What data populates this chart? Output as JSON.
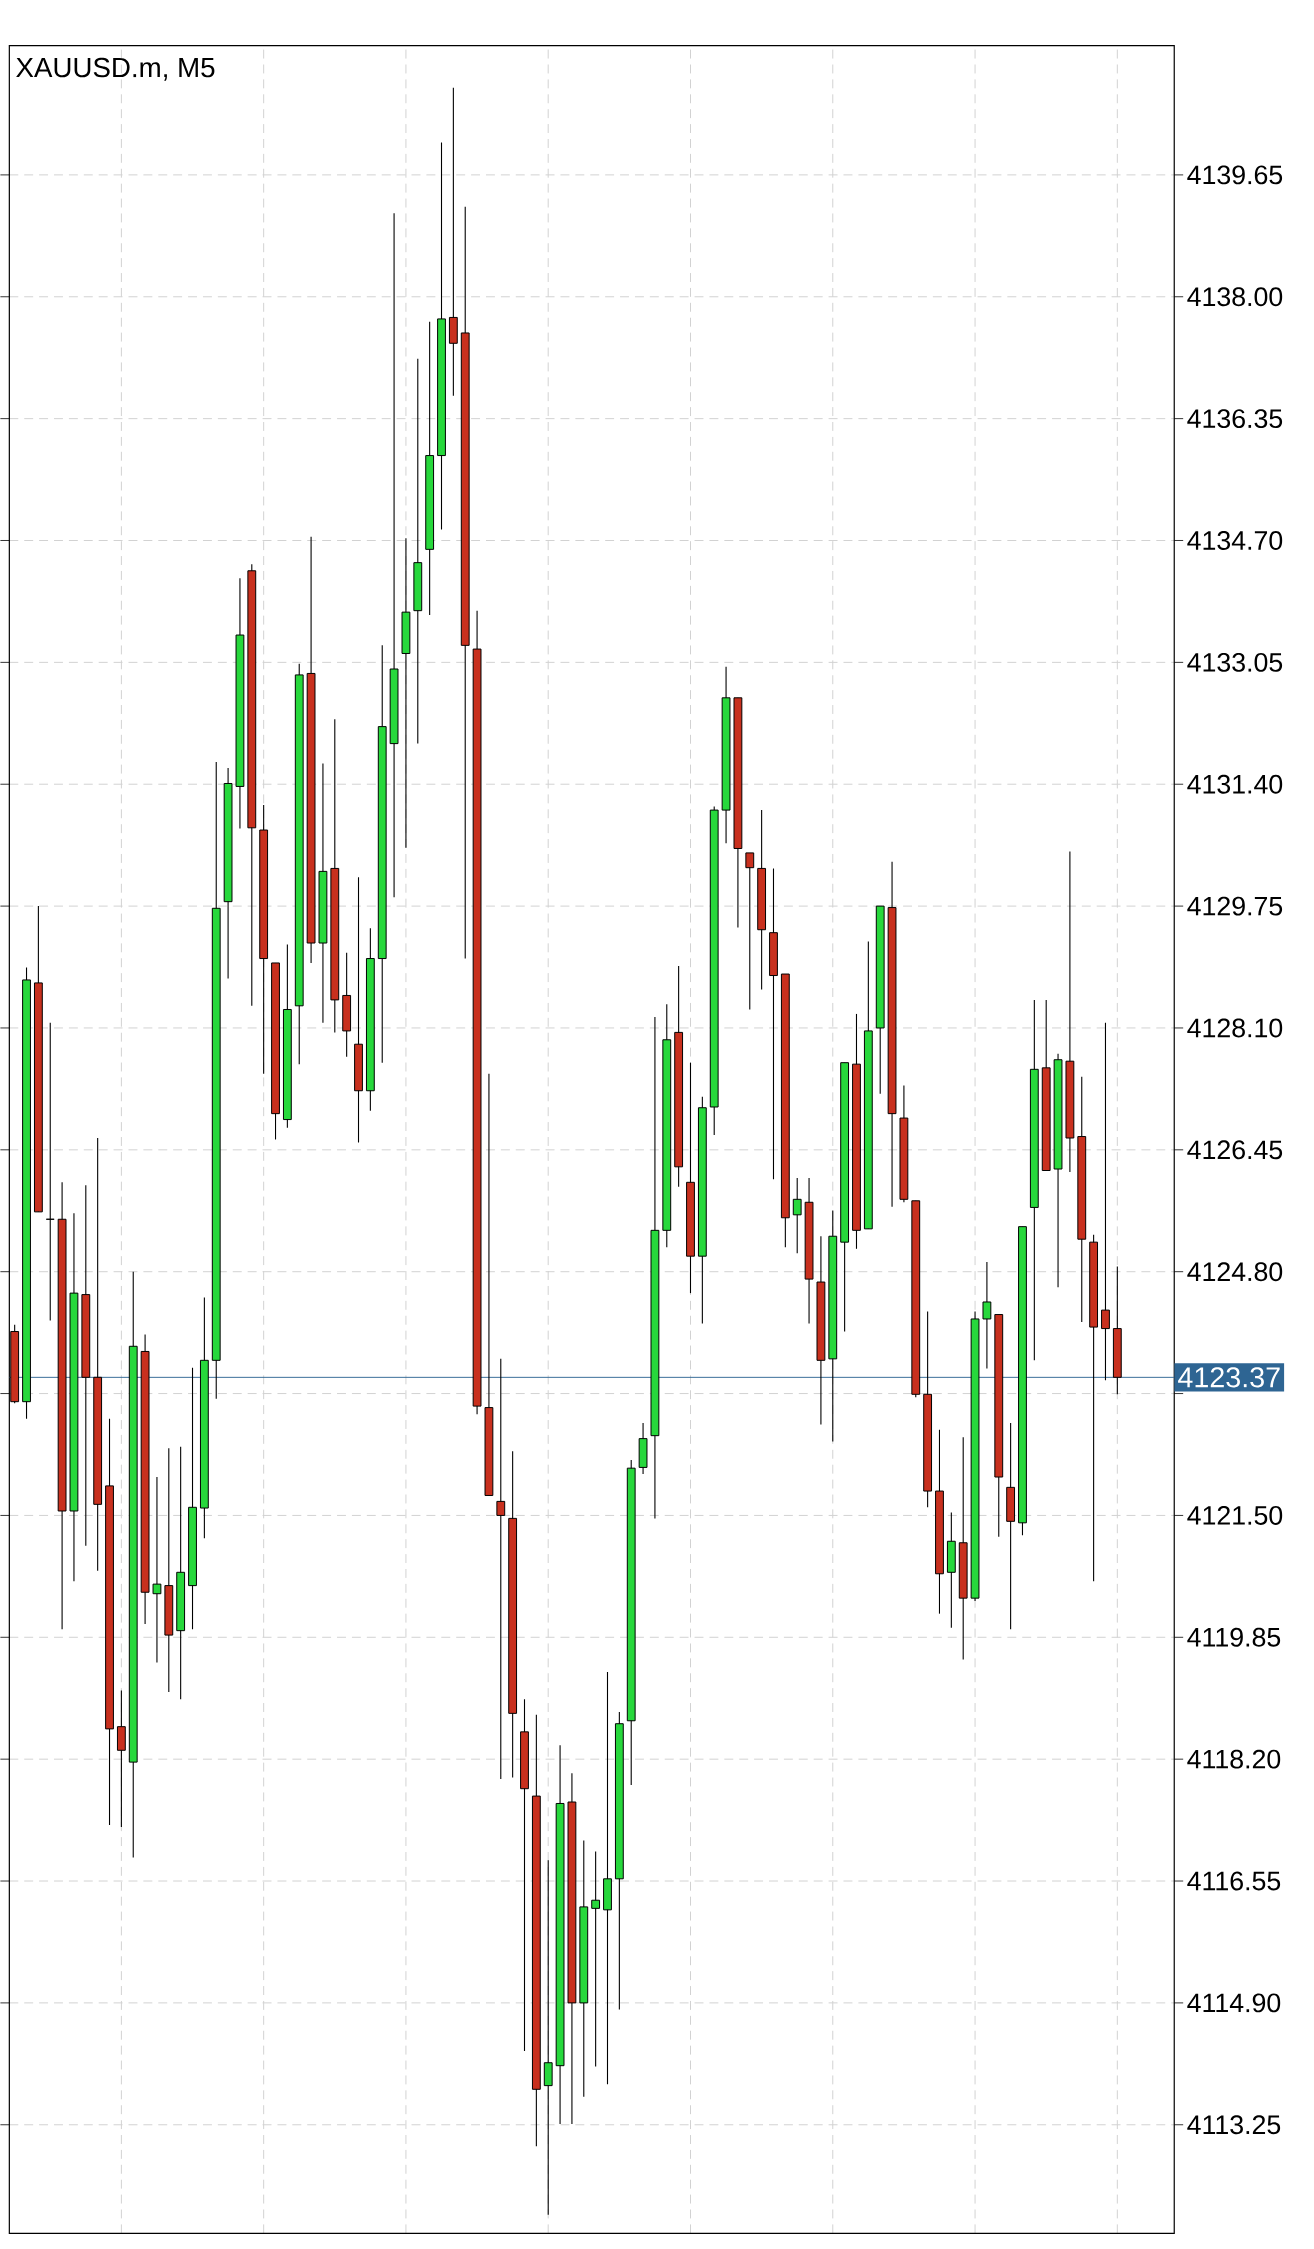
{
  "chart_data": {
    "type": "candlestick",
    "title": "XAUUSD.m, M5",
    "categories": [
      null,
      null,
      null,
      null,
      null,
      null,
      null,
      null,
      null,
      null,
      null,
      null,
      null,
      null,
      null,
      null,
      null,
      null,
      null,
      null,
      null,
      null,
      null,
      null,
      null,
      null,
      null,
      null,
      null,
      null,
      null,
      null,
      null,
      null,
      null,
      null,
      null,
      null,
      null,
      null,
      null,
      null,
      null,
      null,
      null,
      null,
      null,
      null,
      null,
      null,
      null,
      null,
      null,
      null,
      null,
      null,
      null,
      null,
      null,
      null,
      null,
      null,
      null,
      null,
      null,
      null,
      null,
      null,
      null,
      null,
      null,
      null,
      null,
      null,
      null,
      null,
      null,
      null,
      null,
      null,
      null,
      null,
      null,
      null,
      null,
      null,
      null,
      null,
      null,
      null,
      null,
      null,
      null,
      null
    ],
    "ohlc": [
      [
        4123.99,
        4124.08,
        4123.02,
        4123.04
      ],
      [
        4123.04,
        4128.92,
        4122.81,
        4128.75
      ],
      [
        4128.71,
        4129.75,
        4125.61,
        4125.61
      ],
      [
        4125.51,
        4128.17,
        4124.14,
        4125.51
      ],
      [
        4125.51,
        4126.01,
        4119.96,
        4121.56
      ],
      [
        4121.56,
        4125.59,
        4120.61,
        4124.51
      ],
      [
        4124.49,
        4125.97,
        4121.09,
        4123.37
      ],
      [
        4123.37,
        4126.61,
        4120.75,
        4121.65
      ],
      [
        4121.9,
        4122.81,
        4117.31,
        4118.61
      ],
      [
        4118.64,
        4119.13,
        4117.28,
        4118.32
      ],
      [
        4118.16,
        4124.8,
        4116.87,
        4123.79
      ],
      [
        4123.72,
        4123.95,
        4120.03,
        4120.46
      ],
      [
        4120.44,
        4122.02,
        4119.51,
        4120.57
      ],
      [
        4120.55,
        4122.41,
        4119.11,
        4119.88
      ],
      [
        4119.94,
        4122.43,
        4119.01,
        4120.73
      ],
      [
        4120.55,
        4123.5,
        4119.96,
        4121.61
      ],
      [
        4121.6,
        4124.45,
        4121.19,
        4123.6
      ],
      [
        4123.6,
        4131.7,
        4123.08,
        4129.72
      ],
      [
        4129.81,
        4131.62,
        4128.77,
        4131.41
      ],
      [
        4131.37,
        4134.19,
        4130.8,
        4133.42
      ],
      [
        4134.29,
        4134.38,
        4128.4,
        4130.81
      ],
      [
        4130.78,
        4131.12,
        4127.48,
        4129.04
      ],
      [
        4128.98,
        4128.98,
        4126.59,
        4126.94
      ],
      [
        4126.86,
        4129.23,
        4126.75,
        4128.35
      ],
      [
        4128.4,
        4133.03,
        4127.61,
        4132.88
      ],
      [
        4132.9,
        4134.75,
        4128.98,
        4129.25
      ],
      [
        4129.25,
        4131.68,
        4128.17,
        4130.22
      ],
      [
        4130.26,
        4132.28,
        4128.04,
        4128.48
      ],
      [
        4128.54,
        4129.12,
        4127.71,
        4128.06
      ],
      [
        4127.88,
        4130.14,
        4126.55,
        4127.25
      ],
      [
        4127.25,
        4129.45,
        4126.98,
        4129.04
      ],
      [
        4129.04,
        4133.28,
        4127.63,
        4132.18
      ],
      [
        4131.95,
        4139.13,
        4129.87,
        4132.96
      ],
      [
        4133.17,
        4134.73,
        4130.54,
        4133.73
      ],
      [
        4133.75,
        4137.16,
        4131.95,
        4134.4
      ],
      [
        4134.58,
        4137.66,
        4133.69,
        4135.85
      ],
      [
        4135.85,
        4140.09,
        4134.85,
        4137.7
      ],
      [
        4137.72,
        4140.83,
        4136.66,
        4137.37
      ],
      [
        4137.51,
        4139.22,
        4129.04,
        4133.28
      ],
      [
        4133.23,
        4133.75,
        4122.87,
        4122.98
      ],
      [
        4122.96,
        4127.48,
        4121.77,
        4121.77
      ],
      [
        4121.69,
        4123.62,
        4117.93,
        4121.5
      ],
      [
        4121.46,
        4122.37,
        4117.95,
        4118.82
      ],
      [
        4118.57,
        4119.01,
        4114.25,
        4117.8
      ],
      [
        4117.7,
        4118.8,
        4112.96,
        4113.73
      ],
      [
        4113.78,
        4116.83,
        4112.03,
        4114.09
      ],
      [
        4114.05,
        4118.39,
        4113.26,
        4117.6
      ],
      [
        4117.62,
        4118.01,
        4113.26,
        4114.9
      ],
      [
        4114.9,
        4117.1,
        4113.63,
        4116.2
      ],
      [
        4116.18,
        4116.95,
        4114.04,
        4116.29
      ],
      [
        4116.16,
        4119.38,
        4113.8,
        4116.58
      ],
      [
        4116.58,
        4118.84,
        4114.81,
        4118.68
      ],
      [
        4118.72,
        4122.25,
        4117.85,
        4122.14
      ],
      [
        4122.15,
        4122.75,
        4122.06,
        4122.54
      ],
      [
        4122.58,
        4128.25,
        4121.46,
        4125.36
      ],
      [
        4125.36,
        4128.42,
        4125.13,
        4127.94
      ],
      [
        4128.04,
        4128.94,
        4125.95,
        4126.22
      ],
      [
        4126.01,
        4127.63,
        4124.51,
        4125.01
      ],
      [
        4125.01,
        4127.17,
        4124.1,
        4127.02
      ],
      [
        4127.03,
        4131.1,
        4126.65,
        4131.05
      ],
      [
        4131.05,
        4132.99,
        4130.6,
        4132.57
      ],
      [
        4132.57,
        4132.57,
        4129.46,
        4130.53
      ],
      [
        4130.47,
        4130.47,
        4128.35,
        4130.27
      ],
      [
        4130.26,
        4131.05,
        4128.62,
        4129.43
      ],
      [
        4129.39,
        4130.26,
        4126.05,
        4128.81
      ],
      [
        4128.83,
        4128.83,
        4125.13,
        4125.53
      ],
      [
        4125.57,
        4126.07,
        4125.05,
        4125.78
      ],
      [
        4125.74,
        4126.07,
        4124.1,
        4124.7
      ],
      [
        4124.66,
        4125.28,
        4122.73,
        4123.6
      ],
      [
        4123.62,
        4125.63,
        4122.5,
        4125.28
      ],
      [
        4125.2,
        4127.63,
        4123.99,
        4127.63
      ],
      [
        4127.61,
        4128.29,
        4125.11,
        4125.36
      ],
      [
        4125.38,
        4129.27,
        4125.38,
        4128.06
      ],
      [
        4128.1,
        4129.75,
        4127.21,
        4129.75
      ],
      [
        4129.73,
        4130.35,
        4125.68,
        4126.94
      ],
      [
        4126.88,
        4127.32,
        4125.74,
        4125.78
      ],
      [
        4125.76,
        4125.76,
        4123.1,
        4123.14
      ],
      [
        4123.14,
        4124.26,
        4121.61,
        4121.83
      ],
      [
        4121.83,
        4122.66,
        4120.17,
        4120.71
      ],
      [
        4120.73,
        4121.54,
        4119.98,
        4121.15
      ],
      [
        4121.13,
        4122.56,
        4119.55,
        4120.38
      ],
      [
        4120.38,
        4124.26,
        4120.34,
        4124.16
      ],
      [
        4124.16,
        4124.93,
        4123.49,
        4124.39
      ],
      [
        4124.22,
        4124.22,
        4121.21,
        4122.02
      ],
      [
        4121.88,
        4122.75,
        4119.96,
        4121.42
      ],
      [
        4121.4,
        4125.41,
        4121.23,
        4125.41
      ],
      [
        4125.67,
        4128.48,
        4123.6,
        4127.54
      ],
      [
        4127.56,
        4128.48,
        4126.17,
        4126.17
      ],
      [
        4126.19,
        4127.75,
        4124.59,
        4127.67
      ],
      [
        4127.65,
        4130.49,
        4126.15,
        4126.61
      ],
      [
        4126.63,
        4127.44,
        4124.12,
        4125.24
      ],
      [
        4125.2,
        4125.3,
        4120.61,
        4124.05
      ],
      [
        4124.28,
        4128.17,
        4123.33,
        4124.03
      ],
      [
        4124.03,
        4124.87,
        4123.14,
        4123.37
      ]
    ],
    "colors": [
      "#c8301e",
      "#27d83c",
      "#c8301e",
      "#000000",
      "#c8301e",
      "#27d83c",
      "#c8301e",
      "#c8301e",
      "#c8301e",
      "#c8301e",
      "#27d83c",
      "#c8301e",
      "#27d83c",
      "#c8301e",
      "#27d83c",
      "#27d83c",
      "#27d83c",
      "#27d83c",
      "#27d83c",
      "#27d83c",
      "#c8301e",
      "#c8301e",
      "#c8301e",
      "#27d83c",
      "#27d83c",
      "#c8301e",
      "#27d83c",
      "#c8301e",
      "#c8301e",
      "#c8301e",
      "#27d83c",
      "#27d83c",
      "#27d83c",
      "#27d83c",
      "#27d83c",
      "#27d83c",
      "#27d83c",
      "#c8301e",
      "#c8301e",
      "#c8301e",
      "#c8301e",
      "#c8301e",
      "#c8301e",
      "#c8301e",
      "#c8301e",
      "#27d83c",
      "#27d83c",
      "#c8301e",
      "#27d83c",
      "#27d83c",
      "#27d83c",
      "#27d83c",
      "#27d83c",
      "#27d83c",
      "#27d83c",
      "#27d83c",
      "#c8301e",
      "#c8301e",
      "#27d83c",
      "#27d83c",
      "#27d83c",
      "#c8301e",
      "#c8301e",
      "#c8301e",
      "#c8301e",
      "#c8301e",
      "#27d83c",
      "#c8301e",
      "#c8301e",
      "#27d83c",
      "#27d83c",
      "#c8301e",
      "#27d83c",
      "#27d83c",
      "#c8301e",
      "#c8301e",
      "#c8301e",
      "#c8301e",
      "#c8301e",
      "#27d83c",
      "#c8301e",
      "#27d83c",
      "#27d83c",
      "#c8301e",
      "#c8301e",
      "#27d83c",
      "#27d83c",
      "#c8301e",
      "#27d83c",
      "#c8301e",
      "#c8301e",
      "#c8301e",
      "#c8301e",
      "#c8301e"
    ],
    "ylim": [
      4111.78,
      4141.4
    ],
    "yticks": [
      {
        "value": 4113.25,
        "label": "4113.25"
      },
      {
        "value": 4114.9,
        "label": "4114.90"
      },
      {
        "value": 4116.55,
        "label": "4116.55"
      },
      {
        "value": 4118.2,
        "label": "4118.20"
      },
      {
        "value": 4119.85,
        "label": "4119.85"
      },
      {
        "value": 4121.5,
        "label": "4121.50"
      },
      {
        "value": 4123.15,
        "label": null
      },
      {
        "value": 4124.8,
        "label": "4124.80"
      },
      {
        "value": 4126.45,
        "label": "4126.45"
      },
      {
        "value": 4128.1,
        "label": "4128.10"
      },
      {
        "value": 4129.75,
        "label": "4129.75"
      },
      {
        "value": 4131.4,
        "label": "4131.40"
      },
      {
        "value": 4133.05,
        "label": "4133.05"
      },
      {
        "value": 4134.7,
        "label": "4134.70"
      },
      {
        "value": 4136.35,
        "label": "4136.35"
      },
      {
        "value": 4138,
        "label": "4138.00"
      },
      {
        "value": 4139.65,
        "label": "4139.65"
      }
    ],
    "ref_lines": [
      {
        "axis": "y",
        "value": 4123.37,
        "label": "4123.37",
        "color": "#2e6593"
      }
    ],
    "grid": true,
    "tick_labels": "y"
  }
}
